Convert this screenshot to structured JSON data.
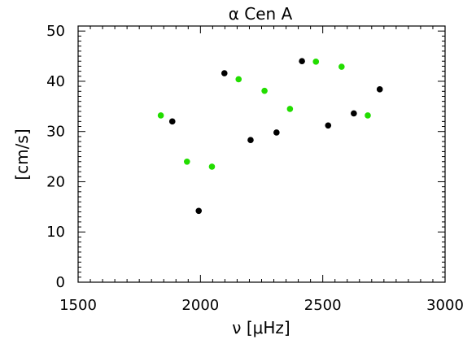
{
  "chart_data": {
    "type": "scatter",
    "title": "α Cen A",
    "xlabel": "ν [μHz]",
    "ylabel": "[cm/s]",
    "xlim": [
      1500,
      3000
    ],
    "ylim": [
      0,
      51
    ],
    "xticks": [
      1500,
      2000,
      2500,
      3000
    ],
    "yticks": [
      0,
      10,
      20,
      30,
      40,
      50
    ],
    "grid": false,
    "series": [
      {
        "color": "#000000",
        "points": [
          {
            "x": 1885,
            "y": 32.0
          },
          {
            "x": 1993,
            "y": 14.2
          },
          {
            "x": 2098,
            "y": 41.6
          },
          {
            "x": 2205,
            "y": 28.3
          },
          {
            "x": 2311,
            "y": 29.8
          },
          {
            "x": 2415,
            "y": 44.0
          },
          {
            "x": 2522,
            "y": 31.2
          },
          {
            "x": 2627,
            "y": 33.6
          },
          {
            "x": 2733,
            "y": 38.4
          }
        ]
      },
      {
        "color": "#22dd00",
        "points": [
          {
            "x": 1838,
            "y": 33.2
          },
          {
            "x": 1945,
            "y": 24.0
          },
          {
            "x": 2047,
            "y": 23.0
          },
          {
            "x": 2156,
            "y": 40.4
          },
          {
            "x": 2262,
            "y": 38.1
          },
          {
            "x": 2366,
            "y": 34.5
          },
          {
            "x": 2472,
            "y": 43.9
          },
          {
            "x": 2577,
            "y": 42.9
          },
          {
            "x": 2684,
            "y": 33.2
          }
        ]
      }
    ]
  }
}
